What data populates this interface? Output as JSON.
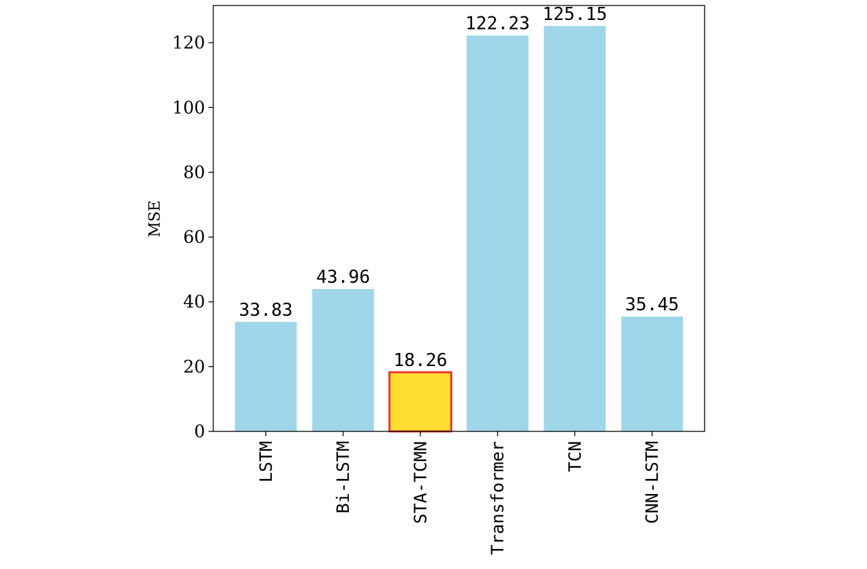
{
  "chart_data": {
    "type": "bar",
    "categories": [
      "LSTM",
      "Bi-LSTM",
      "STA-TCMN",
      "Transformer",
      "TCN",
      "CNN-LSTM"
    ],
    "values": [
      33.83,
      43.96,
      18.26,
      122.23,
      125.15,
      35.45
    ],
    "value_labels": [
      "33.83",
      "43.96",
      "18.26",
      "122.23",
      "125.15",
      "35.45"
    ],
    "title": "",
    "xlabel": "",
    "ylabel": "MSE",
    "ylim": [
      0,
      131.5
    ],
    "yticks": [
      0,
      20,
      40,
      60,
      80,
      100,
      120
    ],
    "ytick_labels": [
      "0",
      "20",
      "40",
      "60",
      "80",
      "100",
      "120"
    ],
    "highlight_index": 2,
    "grid": false,
    "colors": {
      "bar": "#a0d6ea",
      "highlight_fill": "#ffdd33",
      "highlight_edge": "#e8382a",
      "axis": "#000000"
    }
  }
}
